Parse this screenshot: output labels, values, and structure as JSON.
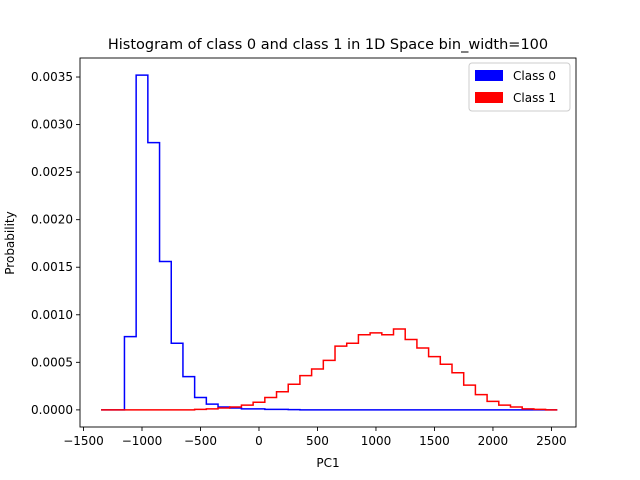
{
  "chart_data": {
    "type": "line",
    "title": "Histogram of class 0 and class 1 in 1D Space bin_width=100",
    "xlabel": "PC1",
    "ylabel": "Probability",
    "xlim": [
      -1530,
      2710
    ],
    "ylim": [
      -0.00018,
      0.0037
    ],
    "xticks": [
      -1500,
      -1000,
      -500,
      0,
      500,
      1000,
      1500,
      2000,
      2500
    ],
    "xtick_labels": [
      "−1500",
      "−1000",
      "−500",
      "0",
      "500",
      "1000",
      "1500",
      "2000",
      "2500"
    ],
    "yticks": [
      0.0,
      0.0005,
      0.001,
      0.0015,
      0.002,
      0.0025,
      0.003,
      0.0035
    ],
    "ytick_labels": [
      "0.0000",
      "0.0005",
      "0.0010",
      "0.0015",
      "0.0020",
      "0.0025",
      "0.0030",
      "0.0035"
    ],
    "grid": false,
    "legend_position": "top-right",
    "series": [
      {
        "name": "Class 0",
        "color": "#0000ff",
        "bin_edges": [
          -1350,
          -1250,
          -1150,
          -1050,
          -950,
          -850,
          -750,
          -650,
          -550,
          -450,
          -350,
          -250,
          -150,
          -50,
          50,
          150,
          250,
          350,
          450,
          550,
          650,
          750,
          850,
          950,
          1050,
          1150,
          1250,
          1350,
          1450,
          1550,
          1650,
          1750,
          1850,
          1950,
          2050,
          2150,
          2250,
          2350,
          2450,
          2550
        ],
        "values": [
          0.0,
          0.0,
          0.00077,
          0.00352,
          0.00281,
          0.00156,
          0.0007,
          0.00035,
          0.00013,
          6e-05,
          3e-05,
          2e-05,
          1e-05,
          1e-05,
          5e-06,
          5e-06,
          3e-06,
          0.0,
          0.0,
          0.0,
          0.0,
          0.0,
          0.0,
          0.0,
          0.0,
          0.0,
          0.0,
          0.0,
          0.0,
          0.0,
          0.0,
          0.0,
          0.0,
          0.0,
          0.0,
          0.0,
          0.0,
          0.0,
          0.0
        ]
      },
      {
        "name": "Class 1",
        "color": "#ff0000",
        "bin_edges": [
          -1350,
          -1250,
          -1150,
          -1050,
          -950,
          -850,
          -750,
          -650,
          -550,
          -450,
          -350,
          -250,
          -150,
          -50,
          50,
          150,
          250,
          350,
          450,
          550,
          650,
          750,
          850,
          950,
          1050,
          1150,
          1250,
          1350,
          1450,
          1550,
          1650,
          1750,
          1850,
          1950,
          2050,
          2150,
          2250,
          2350,
          2450,
          2550
        ],
        "values": [
          0.0,
          0.0,
          0.0,
          0.0,
          0.0,
          0.0,
          0.0,
          0.0,
          5e-06,
          1e-05,
          2e-05,
          3e-05,
          5e-05,
          8e-05,
          0.00013,
          0.00019,
          0.00027,
          0.00036,
          0.00043,
          0.00052,
          0.00067,
          0.0007,
          0.00079,
          0.00081,
          0.00079,
          0.00085,
          0.00074,
          0.00065,
          0.00056,
          0.00048,
          0.00039,
          0.00026,
          0.00016,
          9e-05,
          5e-05,
          3e-05,
          1e-05,
          5e-06,
          0.0
        ]
      }
    ]
  }
}
